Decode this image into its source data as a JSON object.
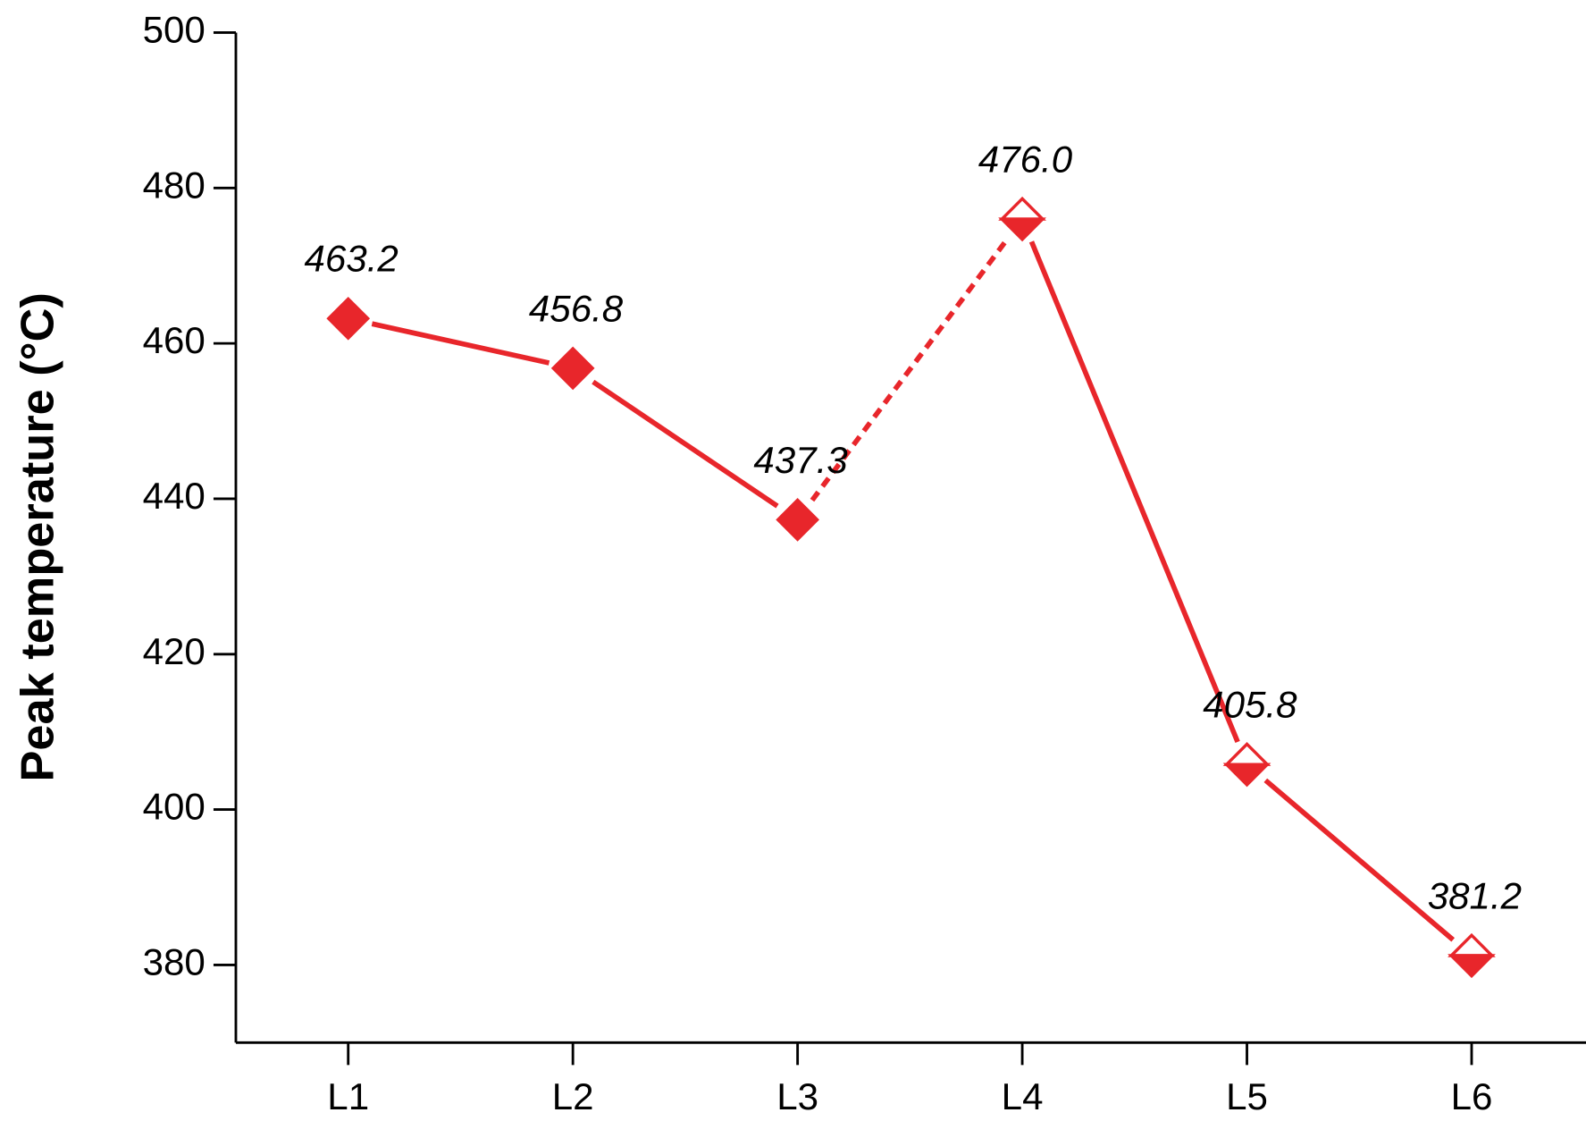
{
  "chart_data": {
    "type": "line",
    "y_label": "Peak temperature (°C)",
    "categories": [
      "L1",
      "L2",
      "L3",
      "L4",
      "L5",
      "L6"
    ],
    "series": [
      {
        "color": "#e8262b",
        "values": [
          463.2,
          456.8,
          437.3,
          476.0,
          405.8,
          381.2
        ],
        "value_labels": [
          "463.2",
          "456.8",
          "437.3",
          "476.0",
          "405.8",
          "381.2"
        ],
        "segment_styles": [
          "solid",
          "solid",
          "dashed",
          "solid",
          "solid"
        ],
        "marker_styles": [
          "filled",
          "filled",
          "filled",
          "half",
          "half",
          "half"
        ]
      }
    ],
    "ylim": [
      370,
      500
    ],
    "yticks": [
      380,
      400,
      420,
      440,
      460,
      480,
      500
    ]
  }
}
